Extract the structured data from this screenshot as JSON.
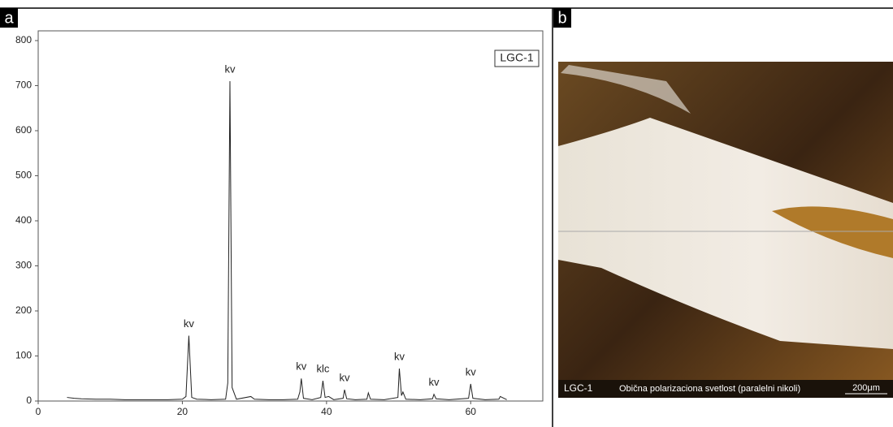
{
  "chart_data": {
    "type": "line",
    "panel_label": "a",
    "box_label": "LGC-1",
    "color": "#222222",
    "x": [
      4,
      5,
      6,
      8,
      10,
      12,
      14,
      16,
      18,
      20,
      20.5,
      20.9,
      21.3,
      22,
      24,
      26,
      26.3,
      26.6,
      26.9,
      27.5,
      29.5,
      30,
      32,
      34,
      36,
      36.3,
      36.5,
      36.8,
      38,
      39.2,
      39.5,
      39.8,
      40.3,
      41,
      42.3,
      42.5,
      42.8,
      44,
      45.6,
      45.8,
      46.1,
      48,
      49.9,
      50.1,
      50.4,
      50.6,
      51,
      53,
      54.7,
      54.9,
      55.2,
      57,
      59.7,
      60,
      60.3,
      62,
      63.9,
      64.1,
      65
    ],
    "values": [
      8,
      6,
      5,
      4,
      4,
      3,
      3,
      3,
      3,
      4,
      10,
      145,
      8,
      4,
      3,
      4,
      40,
      710,
      30,
      4,
      10,
      4,
      3,
      3,
      4,
      20,
      50,
      6,
      3,
      8,
      45,
      8,
      10,
      3,
      6,
      25,
      5,
      3,
      4,
      18,
      4,
      3,
      8,
      72,
      12,
      20,
      4,
      3,
      5,
      15,
      5,
      3,
      6,
      38,
      6,
      3,
      4,
      10,
      3
    ],
    "xlim": [
      0,
      70
    ],
    "ylim": [
      0,
      800
    ],
    "xticks": [
      0,
      20,
      40,
      60
    ],
    "yticks": [
      0,
      100,
      200,
      300,
      400,
      500,
      600,
      700,
      800
    ],
    "annotations": [
      {
        "text": "kv",
        "x": 20.9,
        "y": 145
      },
      {
        "text": "kv",
        "x": 26.6,
        "y": 710
      },
      {
        "text": "kv",
        "x": 36.5,
        "y": 50
      },
      {
        "text": "klc",
        "x": 39.5,
        "y": 45
      },
      {
        "text": "kv",
        "x": 42.5,
        "y": 25
      },
      {
        "text": "kv",
        "x": 50.1,
        "y": 72
      },
      {
        "text": "kv",
        "x": 54.9,
        "y": 15
      },
      {
        "text": "kv",
        "x": 60,
        "y": 38
      }
    ]
  },
  "micrograph": {
    "panel_label": "b",
    "sample": "LGC-1",
    "caption": "Obična polarizaciona svetlost (paralelni nikoli)",
    "scale": "200μm"
  }
}
